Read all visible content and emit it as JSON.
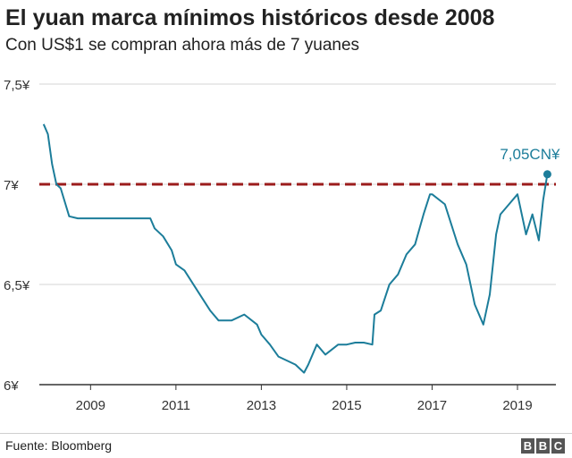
{
  "title": "El yuan marca mínimos históricos desde 2008",
  "subtitle": "Con US$1 se compran ahora más de 7 yuanes",
  "source": "Fuente: Bloomberg",
  "logo": {
    "letters": [
      "B",
      "B",
      "C"
    ]
  },
  "colors": {
    "line": "#1c7d9a",
    "reference": "#9b1c1c",
    "grid": "#d6d6d6",
    "axis": "#333333"
  },
  "chart_data": {
    "type": "line",
    "x_ticks": [
      "2009",
      "2011",
      "2013",
      "2015",
      "2017",
      "2019"
    ],
    "y_ticks": [
      {
        "value": 6.0,
        "label": "6¥"
      },
      {
        "value": 6.5,
        "label": "6,5¥"
      },
      {
        "value": 7.0,
        "label": "7¥"
      },
      {
        "value": 7.5,
        "label": "7,5¥"
      }
    ],
    "xlim": [
      2007.8,
      2019.9
    ],
    "ylim": [
      6.0,
      7.5
    ],
    "reference_line": {
      "value": 7.0,
      "style": "dashed"
    },
    "annotation": {
      "text": "7,05CN¥",
      "x": 2019.7,
      "y": 7.05
    },
    "series": [
      {
        "x": [
          2007.9,
          2008.0,
          2008.1,
          2008.2,
          2008.3,
          2008.5,
          2008.7,
          2009.0,
          2009.5,
          2010.0,
          2010.4,
          2010.5,
          2010.7,
          2010.9,
          2011.0,
          2011.2,
          2011.5,
          2011.8,
          2012.0,
          2012.3,
          2012.6,
          2012.9,
          2013.0,
          2013.2,
          2013.4,
          2013.6,
          2013.8,
          2014.0,
          2014.1,
          2014.3,
          2014.5,
          2014.8,
          2015.0,
          2015.2,
          2015.4,
          2015.6,
          2015.65,
          2015.8,
          2016.0,
          2016.2,
          2016.4,
          2016.6,
          2016.8,
          2016.95,
          2017.0,
          2017.3,
          2017.6,
          2017.8,
          2018.0,
          2018.2,
          2018.35,
          2018.5,
          2018.6,
          2018.8,
          2019.0,
          2019.2,
          2019.35,
          2019.5,
          2019.6,
          2019.7
        ],
        "values": [
          7.3,
          7.25,
          7.1,
          7.0,
          6.98,
          6.84,
          6.83,
          6.83,
          6.83,
          6.83,
          6.83,
          6.78,
          6.74,
          6.67,
          6.6,
          6.57,
          6.47,
          6.37,
          6.32,
          6.32,
          6.35,
          6.3,
          6.25,
          6.2,
          6.14,
          6.12,
          6.1,
          6.06,
          6.1,
          6.2,
          6.15,
          6.2,
          6.2,
          6.21,
          6.21,
          6.2,
          6.35,
          6.37,
          6.5,
          6.55,
          6.65,
          6.7,
          6.85,
          6.95,
          6.95,
          6.9,
          6.7,
          6.6,
          6.4,
          6.3,
          6.45,
          6.75,
          6.85,
          6.9,
          6.95,
          6.75,
          6.85,
          6.72,
          6.92,
          7.05
        ]
      }
    ]
  }
}
